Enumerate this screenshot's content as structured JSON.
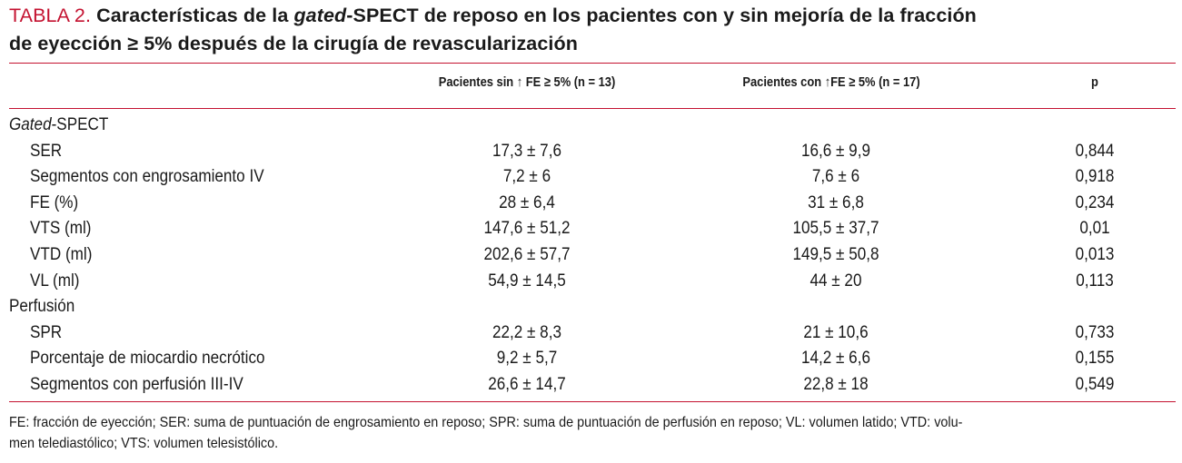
{
  "title": {
    "tag": "TABLA 2.",
    "line1_pre": " Características de la ",
    "line1_em": "gated",
    "line1_post": "-SPECT de reposo en los pacientes con y sin mejoría de la fracción",
    "line2": "de eyección ≥ 5% después de la cirugía de revascularización"
  },
  "headers": {
    "col1": "Pacientes sin ↑ FE ≥ 5% (n = 13)",
    "col2": "Pacientes con ↑FE ≥ 5% (n = 17)",
    "col3": "p"
  },
  "sections": [
    {
      "title_em": "Gated",
      "title_rest": "-SPECT",
      "rows": [
        {
          "label": "SER",
          "a": "17,3 ± 7,6",
          "b": "16,6 ± 9,9",
          "p": "0,844"
        },
        {
          "label": "Segmentos con engrosamiento IV",
          "a": "7,2 ± 6",
          "b": "7,6 ± 6",
          "p": "0,918"
        },
        {
          "label": "FE (%)",
          "a": "28 ± 6,4",
          "b": "31 ± 6,8",
          "p": "0,234"
        },
        {
          "label": "VTS (ml)",
          "a": "147,6 ± 51,2",
          "b": "105,5 ± 37,7",
          "p": "0,01"
        },
        {
          "label": "VTD (ml)",
          "a": "202,6 ± 57,7",
          "b": "149,5 ± 50,8",
          "p": "0,013"
        },
        {
          "label": "VL (ml)",
          "a": "54,9 ± 14,5",
          "b": "44 ± 20",
          "p": "0,113"
        }
      ]
    },
    {
      "title_em": "",
      "title_rest": "Perfusión",
      "rows": [
        {
          "label": "SPR",
          "a": "22,2 ± 8,3",
          "b": "21 ± 10,6",
          "p": "0,733"
        },
        {
          "label": "Porcentaje de miocardio necrótico",
          "a": "9,2 ± 5,7",
          "b": "14,2 ± 6,6",
          "p": "0,155"
        },
        {
          "label": "Segmentos con perfusión III-IV",
          "a": "26,6 ± 14,7",
          "b": "22,8 ± 18",
          "p": "0,549"
        }
      ]
    }
  ],
  "footnote": {
    "line1": "FE: fracción de eyección; SER: suma de puntuación de engrosamiento en reposo; SPR: suma de puntuación de perfusión en reposo; VL: volumen latido; VTD: volu-",
    "line2": "men telediastólico; VTS: volumen telesistólico."
  },
  "colors": {
    "accent": "#c41230",
    "text": "#1a1a1a"
  }
}
